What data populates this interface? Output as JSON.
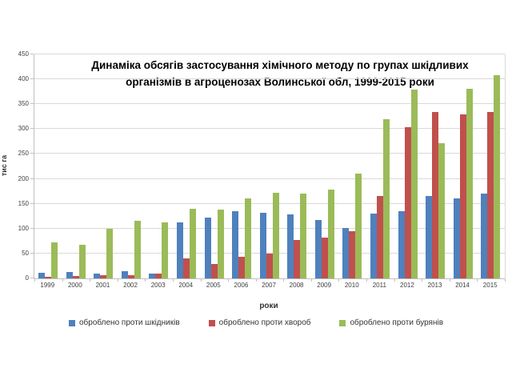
{
  "chart": {
    "title_line1": "Динаміка обсягів  застосування хімічного методу по групах шкідливих",
    "title_line2": "організмів в агроценозах Волинської обл, 1999-2015 роки",
    "ylabel": "тис га",
    "xlabel": "роки"
  },
  "chart_data": {
    "type": "bar",
    "title": "Динаміка обсягів застосування хімічного методу по групах шкідливих організмів в агроценозах Волинської обл, 1999-2015 роки",
    "xlabel": "роки",
    "ylabel": "тис га",
    "ylim": [
      0,
      450
    ],
    "y_tick_step": 50,
    "grid": true,
    "legend_position": "bottom",
    "categories": [
      "1999",
      "2000",
      "2001",
      "2002",
      "2003",
      "2004",
      "2005",
      "2006",
      "2007",
      "2008",
      "2009",
      "2010",
      "2011",
      "2012",
      "2013",
      "2014",
      "2015"
    ],
    "series": [
      {
        "name": "оброблено проти шкідників",
        "color": "#4F81BD",
        "values": [
          12,
          13,
          10,
          14,
          10,
          113,
          122,
          135,
          132,
          128,
          118,
          102,
          130,
          135,
          165,
          160,
          171
        ]
      },
      {
        "name": "оброблено проти хвороб",
        "color": "#C0504D",
        "values": [
          4,
          5,
          6,
          7,
          10,
          40,
          29,
          43,
          50,
          77,
          82,
          95,
          165,
          303,
          335,
          330,
          335
        ]
      },
      {
        "name": "оброблено проти бурянів",
        "color": "#9BBB59",
        "values": [
          72,
          68,
          100,
          115,
          113,
          140,
          138,
          161,
          172,
          170,
          178,
          210,
          320,
          380,
          271,
          381,
          408
        ]
      }
    ]
  }
}
